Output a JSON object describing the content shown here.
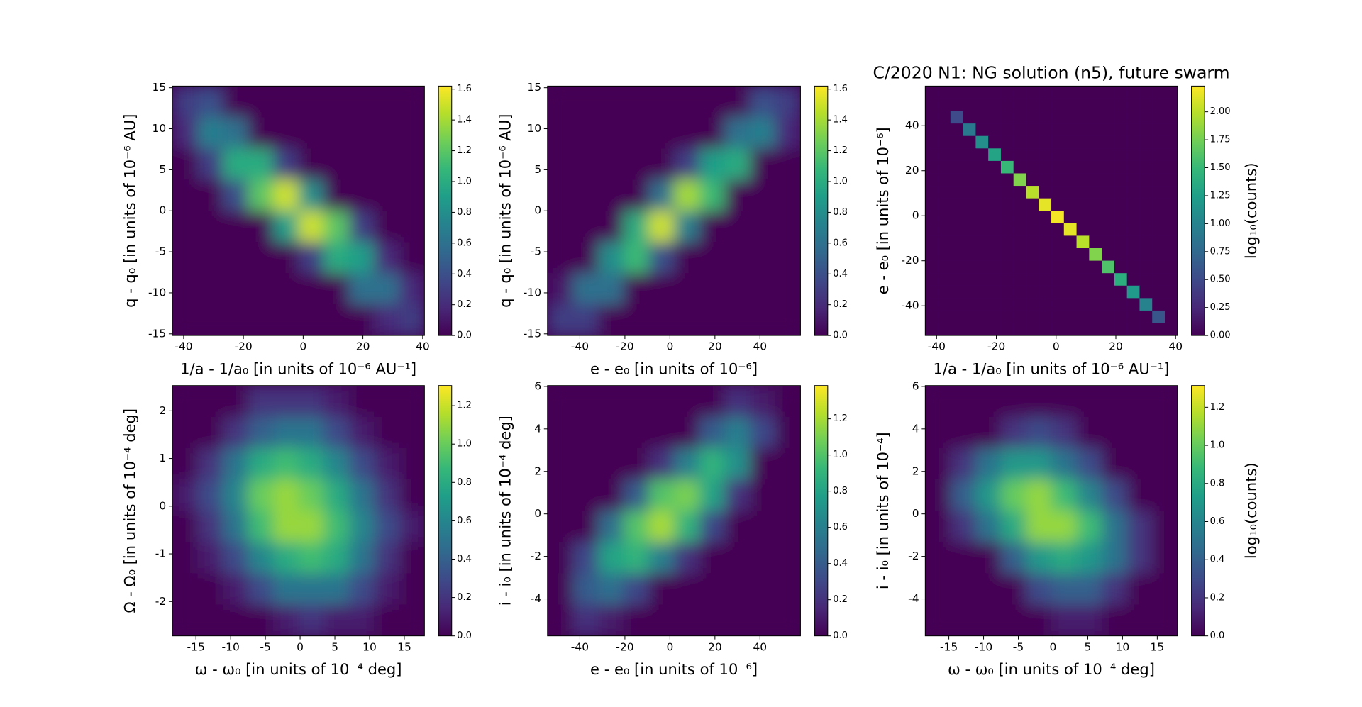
{
  "chart_data": [
    {
      "type": "hexbin",
      "xlabel": "1/a - 1/a₀ [in units of 10⁻⁶ AU⁻¹]",
      "ylabel": "q - q₀ [in units of 10⁻⁶ AU]",
      "xlim": [
        -43.8,
        40.6
      ],
      "ylim": [
        -15.2,
        15.2
      ],
      "xticks": [
        -40,
        -20,
        0,
        20,
        40
      ],
      "yticks": [
        -15,
        -10,
        -5,
        0,
        5,
        10,
        15
      ],
      "clim": [
        0,
        1.62
      ],
      "cticks": [
        {
          "value": 0,
          "label": "0.0"
        },
        {
          "value": 0.2,
          "label": "0.2"
        },
        {
          "value": 0.4,
          "label": "0.4"
        },
        {
          "value": 0.6,
          "label": "0.6"
        },
        {
          "value": 0.8,
          "label": "0.8"
        },
        {
          "value": 1,
          "label": "1.0"
        },
        {
          "value": 1.2,
          "label": "1.2"
        },
        {
          "value": 1.4,
          "label": "1.4"
        },
        {
          "value": 1.6,
          "label": "1.6"
        }
      ],
      "z": [
        [
          0.3,
          0.4,
          0,
          0,
          0,
          0,
          0,
          0,
          0,
          0
        ],
        [
          0.2,
          0.7,
          0.6,
          0,
          0,
          0,
          0,
          0,
          0,
          0
        ],
        [
          0,
          0.3,
          1.0,
          1.0,
          0.3,
          0,
          0,
          0,
          0,
          0
        ],
        [
          0,
          0,
          0.4,
          1.2,
          1.5,
          0.8,
          0,
          0,
          0,
          0
        ],
        [
          0,
          0,
          0,
          0,
          0.9,
          1.5,
          1.2,
          0.3,
          0,
          0
        ],
        [
          0,
          0,
          0,
          0,
          0,
          0.3,
          1.0,
          0.9,
          0.2,
          0
        ],
        [
          0,
          0,
          0,
          0,
          0,
          0,
          0,
          0.6,
          0.6,
          0.2
        ],
        [
          0,
          0,
          0,
          0,
          0,
          0,
          0,
          0,
          0.2,
          0.3
        ]
      ]
    },
    {
      "type": "hexbin",
      "xlabel": "e - e₀ [in units of 10⁻⁶]",
      "ylabel": "q - q₀ [in units of 10⁻⁶ AU]",
      "xlim": [
        -54.4,
        58
      ],
      "ylim": [
        -15.2,
        15.2
      ],
      "xticks": [
        -40,
        -20,
        0,
        20,
        40
      ],
      "yticks": [
        -15,
        -10,
        -5,
        0,
        5,
        10,
        15
      ],
      "clim": [
        0,
        1.62
      ],
      "cticks": [
        {
          "value": 0,
          "label": "0.0"
        },
        {
          "value": 0.2,
          "label": "0.2"
        },
        {
          "value": 0.4,
          "label": "0.4"
        },
        {
          "value": 0.6,
          "label": "0.6"
        },
        {
          "value": 0.8,
          "label": "0.8"
        },
        {
          "value": 1,
          "label": "1.0"
        },
        {
          "value": 1.2,
          "label": "1.2"
        },
        {
          "value": 1.4,
          "label": "1.4"
        },
        {
          "value": 1.6,
          "label": "1.6"
        }
      ],
      "z": [
        [
          0,
          0,
          0,
          0,
          0,
          0,
          0,
          0,
          0.4,
          0.3
        ],
        [
          0,
          0,
          0,
          0,
          0,
          0,
          0,
          0.6,
          0.7,
          0.2
        ],
        [
          0,
          0,
          0,
          0,
          0,
          0.3,
          0.9,
          1.0,
          0,
          0
        ],
        [
          0,
          0,
          0,
          0,
          0.6,
          1.4,
          1.1,
          0,
          0,
          0
        ],
        [
          0,
          0,
          0,
          1.0,
          1.5,
          0.7,
          0,
          0,
          0,
          0
        ],
        [
          0,
          0,
          0.8,
          1.1,
          0.4,
          0,
          0,
          0,
          0,
          0
        ],
        [
          0.1,
          0.6,
          0.6,
          0,
          0,
          0,
          0,
          0,
          0,
          0
        ],
        [
          0.3,
          0.3,
          0,
          0,
          0,
          0,
          0,
          0,
          0,
          0
        ]
      ]
    },
    {
      "type": "hexbin",
      "title": "C/2020 N1: NG solution (n5), future swarm",
      "xlabel": "1/a - 1/a₀ [in units of 10⁻⁶ AU⁻¹]",
      "ylabel": "e - e₀ [in units of 10⁻⁶]",
      "xlim": [
        -43.8,
        40.6
      ],
      "ylim": [
        -53.2,
        57.6
      ],
      "xticks": [
        -40,
        -20,
        0,
        20,
        40
      ],
      "yticks": [
        -40,
        -20,
        0,
        20,
        40
      ],
      "clim": [
        0,
        2.23
      ],
      "clabel": "log₁₀(counts)",
      "cticks": [
        {
          "value": 0,
          "label": "0.00"
        },
        {
          "value": 0.25,
          "label": "0.25"
        },
        {
          "value": 0.5,
          "label": "0.50"
        },
        {
          "value": 0.75,
          "label": "0.75"
        },
        {
          "value": 1,
          "label": "1.00"
        },
        {
          "value": 1.25,
          "label": "1.25"
        },
        {
          "value": 1.5,
          "label": "1.50"
        },
        {
          "value": 1.75,
          "label": "1.75"
        },
        {
          "value": 2,
          "label": "2.00"
        }
      ],
      "z": [
        [
          0,
          0,
          0,
          0,
          0,
          0,
          0,
          0,
          0,
          0,
          0,
          0,
          0,
          0,
          0,
          0,
          0,
          0,
          0,
          0
        ],
        [
          0,
          0,
          0,
          0,
          0,
          0,
          0,
          0,
          0,
          0,
          0,
          0,
          0,
          0,
          0,
          0,
          0,
          0,
          0,
          0
        ],
        [
          0,
          0,
          0.5,
          0,
          0,
          0,
          0,
          0,
          0,
          0,
          0,
          0,
          0,
          0,
          0,
          0,
          0,
          0,
          0,
          0
        ],
        [
          0,
          0,
          0,
          0.9,
          0,
          0,
          0,
          0,
          0,
          0,
          0,
          0,
          0,
          0,
          0,
          0,
          0,
          0,
          0,
          0
        ],
        [
          0,
          0,
          0,
          0,
          1.1,
          0,
          0,
          0,
          0,
          0,
          0,
          0,
          0,
          0,
          0,
          0,
          0,
          0,
          0,
          0
        ],
        [
          0,
          0,
          0,
          0,
          0,
          1.3,
          0,
          0,
          0,
          0,
          0,
          0,
          0,
          0,
          0,
          0,
          0,
          0,
          0,
          0
        ],
        [
          0,
          0,
          0,
          0,
          0,
          0,
          1.5,
          0,
          0,
          0,
          0,
          0,
          0,
          0,
          0,
          0,
          0,
          0,
          0,
          0
        ],
        [
          0,
          0,
          0,
          0,
          0,
          0,
          0,
          1.8,
          0,
          0,
          0,
          0,
          0,
          0,
          0,
          0,
          0,
          0,
          0,
          0
        ],
        [
          0,
          0,
          0,
          0,
          0,
          0,
          0,
          0,
          2.0,
          0,
          0,
          0,
          0,
          0,
          0,
          0,
          0,
          0,
          0,
          0
        ],
        [
          0,
          0,
          0,
          0,
          0,
          0,
          0,
          0,
          0,
          2.15,
          0,
          0,
          0,
          0,
          0,
          0,
          0,
          0,
          0,
          0
        ],
        [
          0,
          0,
          0,
          0,
          0,
          0,
          0,
          0,
          0,
          0,
          2.2,
          0,
          0,
          0,
          0,
          0,
          0,
          0,
          0,
          0
        ],
        [
          0,
          0,
          0,
          0,
          0,
          0,
          0,
          0,
          0,
          0,
          0,
          2.15,
          0,
          0,
          0,
          0,
          0,
          0,
          0,
          0
        ],
        [
          0,
          0,
          0,
          0,
          0,
          0,
          0,
          0,
          0,
          0,
          0,
          0,
          2.0,
          0,
          0,
          0,
          0,
          0,
          0,
          0
        ],
        [
          0,
          0,
          0,
          0,
          0,
          0,
          0,
          0,
          0,
          0,
          0,
          0,
          0,
          1.8,
          0,
          0,
          0,
          0,
          0,
          0
        ],
        [
          0,
          0,
          0,
          0,
          0,
          0,
          0,
          0,
          0,
          0,
          0,
          0,
          0,
          0,
          1.6,
          0,
          0,
          0,
          0,
          0
        ],
        [
          0,
          0,
          0,
          0,
          0,
          0,
          0,
          0,
          0,
          0,
          0,
          0,
          0,
          0,
          0,
          1.4,
          0,
          0,
          0,
          0
        ],
        [
          0,
          0,
          0,
          0,
          0,
          0,
          0,
          0,
          0,
          0,
          0,
          0,
          0,
          0,
          0,
          0,
          1.2,
          0,
          0,
          0
        ],
        [
          0,
          0,
          0,
          0,
          0,
          0,
          0,
          0,
          0,
          0,
          0,
          0,
          0,
          0,
          0,
          0,
          0,
          1.0,
          0,
          0
        ],
        [
          0,
          0,
          0,
          0,
          0,
          0,
          0,
          0,
          0,
          0,
          0,
          0,
          0,
          0,
          0,
          0,
          0,
          0,
          0.6,
          0
        ],
        [
          0,
          0,
          0,
          0,
          0,
          0,
          0,
          0,
          0,
          0,
          0,
          0,
          0,
          0,
          0,
          0,
          0,
          0,
          0,
          0
        ]
      ]
    },
    {
      "type": "hexbin",
      "xlabel": "ω - ω₀ [in units of 10⁻⁴ deg]",
      "ylabel": "Ω - Ω₀ [in units of 10⁻⁴ deg]",
      "xlim": [
        -18.4,
        17.9
      ],
      "ylim": [
        -2.72,
        2.53
      ],
      "xticks": [
        -15,
        -10,
        -5,
        0,
        5,
        10,
        15
      ],
      "yticks": [
        -2,
        -1,
        0,
        1,
        2
      ],
      "clim": [
        0,
        1.305
      ],
      "cticks": [
        {
          "value": 0,
          "label": "0.0"
        },
        {
          "value": 0.2,
          "label": "0.2"
        },
        {
          "value": 0.4,
          "label": "0.4"
        },
        {
          "value": 0.6,
          "label": "0.6"
        },
        {
          "value": 0.8,
          "label": "0.8"
        },
        {
          "value": 1,
          "label": "1.0"
        },
        {
          "value": 1.2,
          "label": "1.2"
        }
      ],
      "z": [
        [
          0,
          0,
          0,
          0.2,
          0.2,
          0.2,
          0.1,
          0,
          0,
          0
        ],
        [
          0,
          0,
          0.2,
          0.4,
          0.5,
          0.5,
          0.3,
          0.1,
          0,
          0
        ],
        [
          0,
          0.2,
          0.5,
          0.8,
          0.9,
          0.8,
          0.6,
          0.3,
          0.1,
          0
        ],
        [
          0.1,
          0.3,
          0.6,
          1.0,
          1.1,
          1.0,
          0.8,
          0.5,
          0.2,
          0
        ],
        [
          0,
          0.2,
          0.5,
          0.9,
          1.1,
          1.1,
          0.9,
          0.6,
          0.3,
          0.1
        ],
        [
          0,
          0.1,
          0.3,
          0.6,
          0.8,
          0.9,
          0.8,
          0.5,
          0.2,
          0
        ],
        [
          0,
          0,
          0.1,
          0.3,
          0.5,
          0.5,
          0.5,
          0.3,
          0.1,
          0
        ],
        [
          0,
          0,
          0,
          0,
          0.1,
          0.2,
          0.1,
          0.1,
          0,
          0
        ]
      ]
    },
    {
      "type": "hexbin",
      "xlabel": "e - e₀ [in units of 10⁻⁶]",
      "ylabel": "i - i₀ [in units of 10⁻⁴ deg]",
      "xlim": [
        -54.4,
        58
      ],
      "ylim": [
        -5.74,
        6.04
      ],
      "xticks": [
        -40,
        -20,
        0,
        20,
        40
      ],
      "yticks": [
        -4,
        -2,
        0,
        2,
        4,
        6
      ],
      "clim": [
        0,
        1.384
      ],
      "cticks": [
        {
          "value": 0,
          "label": "0.0"
        },
        {
          "value": 0.2,
          "label": "0.2"
        },
        {
          "value": 0.4,
          "label": "0.4"
        },
        {
          "value": 0.6,
          "label": "0.6"
        },
        {
          "value": 0.8,
          "label": "0.8"
        },
        {
          "value": 1,
          "label": "1.0"
        },
        {
          "value": 1.2,
          "label": "1.2"
        }
      ],
      "z": [
        [
          0,
          0,
          0,
          0,
          0,
          0,
          0,
          0.2,
          0.1,
          0
        ],
        [
          0,
          0,
          0,
          0,
          0,
          0,
          0.4,
          0.6,
          0.3,
          0
        ],
        [
          0,
          0,
          0,
          0,
          0.2,
          0.6,
          0.9,
          0.7,
          0,
          0
        ],
        [
          0,
          0,
          0,
          0.4,
          1.0,
          1.1,
          0.8,
          0.2,
          0,
          0
        ],
        [
          0,
          0,
          0.5,
          1.0,
          1.2,
          0.9,
          0.3,
          0,
          0,
          0
        ],
        [
          0,
          0.3,
          0.8,
          0.9,
          0.6,
          0.2,
          0,
          0,
          0,
          0
        ],
        [
          0,
          0.4,
          0.5,
          0.3,
          0,
          0,
          0,
          0,
          0,
          0
        ],
        [
          0,
          0.2,
          0.1,
          0,
          0,
          0,
          0,
          0,
          0,
          0
        ]
      ]
    },
    {
      "type": "hexbin",
      "xlabel": "ω - ω₀ [in units of 10⁻⁴ deg]",
      "ylabel": "i - i₀ [in units of 10⁻⁴]",
      "xlim": [
        -18.4,
        17.9
      ],
      "ylim": [
        -5.74,
        6.04
      ],
      "xticks": [
        -15,
        -10,
        -5,
        0,
        5,
        10,
        15
      ],
      "yticks": [
        -4,
        -2,
        0,
        2,
        4,
        6
      ],
      "clim": [
        0,
        1.314
      ],
      "clabel": "log₁₀(counts)",
      "cticks": [
        {
          "value": 0,
          "label": "0.0"
        },
        {
          "value": 0.2,
          "label": "0.2"
        },
        {
          "value": 0.4,
          "label": "0.4"
        },
        {
          "value": 0.6,
          "label": "0.6"
        },
        {
          "value": 0.8,
          "label": "0.8"
        },
        {
          "value": 1,
          "label": "1.0"
        },
        {
          "value": 1.2,
          "label": "1.2"
        }
      ],
      "z": [
        [
          0,
          0,
          0,
          0,
          0,
          0,
          0,
          0,
          0,
          0
        ],
        [
          0,
          0,
          0,
          0.2,
          0.3,
          0.2,
          0,
          0,
          0,
          0
        ],
        [
          0,
          0.2,
          0.5,
          0.7,
          0.7,
          0.5,
          0.3,
          0,
          0,
          0
        ],
        [
          0,
          0.4,
          0.7,
          1.0,
          1.1,
          0.9,
          0.6,
          0.3,
          0,
          0
        ],
        [
          0,
          0.2,
          0.5,
          0.8,
          1.1,
          1.1,
          0.9,
          0.5,
          0.2,
          0
        ],
        [
          0,
          0,
          0,
          0.4,
          0.7,
          0.8,
          0.7,
          0.5,
          0.2,
          0
        ],
        [
          0,
          0,
          0,
          0,
          0.3,
          0.4,
          0.4,
          0.2,
          0,
          0
        ],
        [
          0,
          0,
          0,
          0,
          0,
          0.1,
          0.1,
          0,
          0,
          0
        ]
      ]
    }
  ]
}
